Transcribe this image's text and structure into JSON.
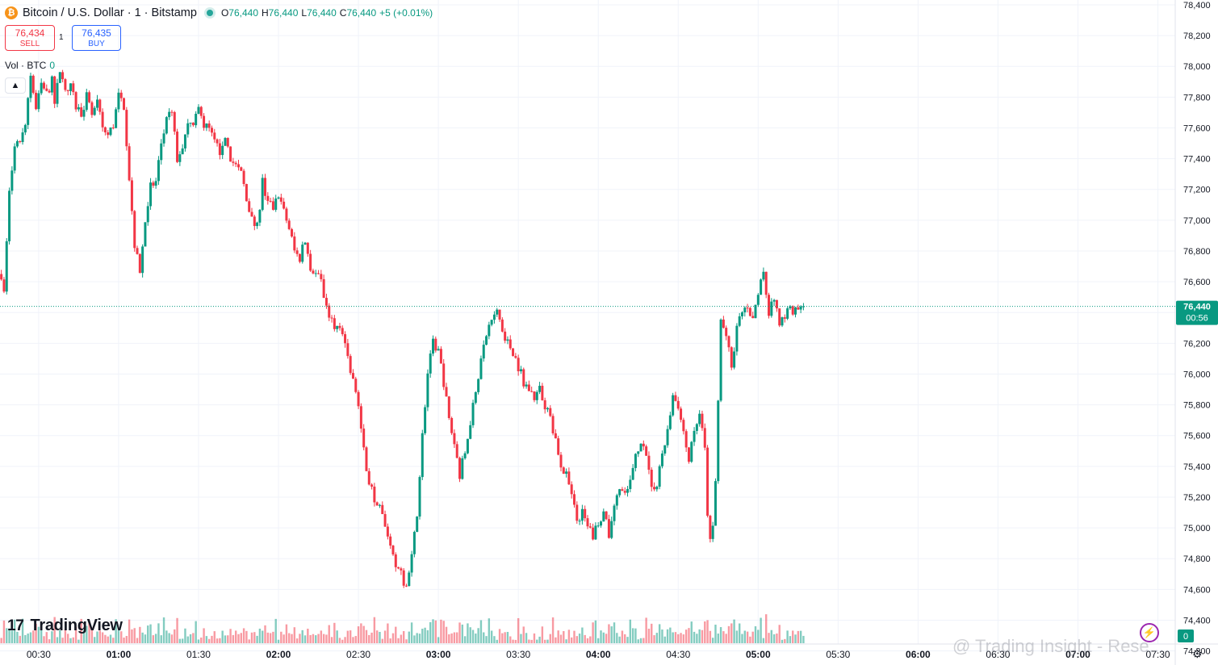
{
  "header": {
    "coin_glyph": "₿",
    "symbol": "Bitcoin / U.S. Dollar · 1 · Bitstamp",
    "open_label": "O",
    "open": "76,440",
    "high_label": "H",
    "high": "76,440",
    "low_label": "L",
    "low": "76,440",
    "close_label": "C",
    "close": "76,440",
    "change": "+5 (+0.01%)"
  },
  "trade": {
    "sell_price": "76,434",
    "sell_label": "SELL",
    "qty": "1",
    "buy_price": "76,435",
    "buy_label": "BUY"
  },
  "volume_legend": {
    "label": "Vol · BTC",
    "value": "0"
  },
  "brand": "TradingView",
  "watermark": "@ Trading Insight - Rese...",
  "price_label": {
    "price": "76,440",
    "countdown": "00:56"
  },
  "volume_label": "0",
  "colors": {
    "up": "#089981",
    "down": "#f23645",
    "accent": "#2962ff"
  },
  "chart_data": {
    "type": "candlestick",
    "title": "Bitcoin / U.S. Dollar · 1 · Bitstamp",
    "interval": "1 minute",
    "ylim": [
      74300,
      78400
    ],
    "y_ticks": [
      "78,400",
      "78,200",
      "78,000",
      "77,800",
      "77,600",
      "77,400",
      "77,200",
      "77,000",
      "76,800",
      "76,600",
      "76,400",
      "76,200",
      "76,000",
      "75,800",
      "75,600",
      "75,400",
      "75,200",
      "75,000",
      "74,800",
      "74,600",
      "74,400",
      "74,200"
    ],
    "x_ticks": [
      "00:30",
      "01:00",
      "01:30",
      "02:00",
      "02:30",
      "03:00",
      "03:30",
      "04:00",
      "04:30",
      "05:00",
      "05:30",
      "06:00",
      "06:30",
      "07:00",
      "07:30"
    ],
    "x_tick_times_min": [
      30,
      60,
      90,
      120,
      150,
      180,
      210,
      240,
      270,
      300,
      330,
      360,
      390,
      420,
      450
    ],
    "x_range_min": [
      15.5,
      456.5
    ],
    "current_price": 76440,
    "close_path": [
      {
        "t": 16,
        "p": 76650
      },
      {
        "t": 17,
        "p": 76520
      },
      {
        "t": 19,
        "p": 77200
      },
      {
        "t": 21,
        "p": 77450
      },
      {
        "t": 23,
        "p": 77520
      },
      {
        "t": 25,
        "p": 77650
      },
      {
        "t": 27,
        "p": 77950
      },
      {
        "t": 29,
        "p": 77720
      },
      {
        "t": 31,
        "p": 77880
      },
      {
        "t": 33,
        "p": 77820
      },
      {
        "t": 35,
        "p": 77900
      },
      {
        "t": 36,
        "p": 77750
      },
      {
        "t": 38,
        "p": 77980
      },
      {
        "t": 40,
        "p": 77820
      },
      {
        "t": 42,
        "p": 77860
      },
      {
        "t": 44,
        "p": 77740
      },
      {
        "t": 46,
        "p": 77700
      },
      {
        "t": 48,
        "p": 77800
      },
      {
        "t": 50,
        "p": 77680
      },
      {
        "t": 52,
        "p": 77750
      },
      {
        "t": 54,
        "p": 77600
      },
      {
        "t": 56,
        "p": 77550
      },
      {
        "t": 58,
        "p": 77620
      },
      {
        "t": 60,
        "p": 77800
      },
      {
        "t": 62,
        "p": 77750
      },
      {
        "t": 64,
        "p": 77280
      },
      {
        "t": 66,
        "p": 76850
      },
      {
        "t": 68,
        "p": 76650
      },
      {
        "t": 70,
        "p": 77000
      },
      {
        "t": 72,
        "p": 77220
      },
      {
        "t": 74,
        "p": 77250
      },
      {
        "t": 76,
        "p": 77500
      },
      {
        "t": 78,
        "p": 77650
      },
      {
        "t": 80,
        "p": 77700
      },
      {
        "t": 82,
        "p": 77400
      },
      {
        "t": 84,
        "p": 77480
      },
      {
        "t": 86,
        "p": 77650
      },
      {
        "t": 88,
        "p": 77600
      },
      {
        "t": 90,
        "p": 77720
      },
      {
        "t": 92,
        "p": 77620
      },
      {
        "t": 94,
        "p": 77580
      },
      {
        "t": 96,
        "p": 77500
      },
      {
        "t": 98,
        "p": 77450
      },
      {
        "t": 100,
        "p": 77550
      },
      {
        "t": 102,
        "p": 77400
      },
      {
        "t": 104,
        "p": 77350
      },
      {
        "t": 106,
        "p": 77300
      },
      {
        "t": 108,
        "p": 77150
      },
      {
        "t": 110,
        "p": 77000
      },
      {
        "t": 112,
        "p": 76950
      },
      {
        "t": 114,
        "p": 77250
      },
      {
        "t": 116,
        "p": 77100
      },
      {
        "t": 118,
        "p": 77080
      },
      {
        "t": 120,
        "p": 77180
      },
      {
        "t": 122,
        "p": 77050
      },
      {
        "t": 124,
        "p": 76950
      },
      {
        "t": 126,
        "p": 76800
      },
      {
        "t": 128,
        "p": 76750
      },
      {
        "t": 130,
        "p": 76880
      },
      {
        "t": 132,
        "p": 76700
      },
      {
        "t": 134,
        "p": 76650
      },
      {
        "t": 136,
        "p": 76600
      },
      {
        "t": 138,
        "p": 76420
      },
      {
        "t": 140,
        "p": 76350
      },
      {
        "t": 142,
        "p": 76300
      },
      {
        "t": 144,
        "p": 76250
      },
      {
        "t": 146,
        "p": 76100
      },
      {
        "t": 148,
        "p": 75950
      },
      {
        "t": 150,
        "p": 75800
      },
      {
        "t": 152,
        "p": 75500
      },
      {
        "t": 154,
        "p": 75300
      },
      {
        "t": 156,
        "p": 75200
      },
      {
        "t": 158,
        "p": 75150
      },
      {
        "t": 160,
        "p": 75000
      },
      {
        "t": 162,
        "p": 74850
      },
      {
        "t": 164,
        "p": 74750
      },
      {
        "t": 166,
        "p": 74700
      },
      {
        "t": 168,
        "p": 74600
      },
      {
        "t": 170,
        "p": 74800
      },
      {
        "t": 172,
        "p": 75100
      },
      {
        "t": 174,
        "p": 75600
      },
      {
        "t": 176,
        "p": 76000
      },
      {
        "t": 178,
        "p": 76200
      },
      {
        "t": 180,
        "p": 76150
      },
      {
        "t": 182,
        "p": 75950
      },
      {
        "t": 184,
        "p": 75700
      },
      {
        "t": 186,
        "p": 75550
      },
      {
        "t": 188,
        "p": 75350
      },
      {
        "t": 190,
        "p": 75500
      },
      {
        "t": 192,
        "p": 75700
      },
      {
        "t": 194,
        "p": 75900
      },
      {
        "t": 196,
        "p": 76100
      },
      {
        "t": 198,
        "p": 76250
      },
      {
        "t": 200,
        "p": 76350
      },
      {
        "t": 202,
        "p": 76400
      },
      {
        "t": 204,
        "p": 76300
      },
      {
        "t": 206,
        "p": 76200
      },
      {
        "t": 208,
        "p": 76150
      },
      {
        "t": 210,
        "p": 76050
      },
      {
        "t": 212,
        "p": 75950
      },
      {
        "t": 214,
        "p": 75900
      },
      {
        "t": 216,
        "p": 75850
      },
      {
        "t": 218,
        "p": 75900
      },
      {
        "t": 220,
        "p": 75800
      },
      {
        "t": 222,
        "p": 75700
      },
      {
        "t": 224,
        "p": 75550
      },
      {
        "t": 226,
        "p": 75400
      },
      {
        "t": 228,
        "p": 75350
      },
      {
        "t": 230,
        "p": 75200
      },
      {
        "t": 232,
        "p": 75050
      },
      {
        "t": 234,
        "p": 75100
      },
      {
        "t": 236,
        "p": 75000
      },
      {
        "t": 238,
        "p": 74950
      },
      {
        "t": 240,
        "p": 75050
      },
      {
        "t": 242,
        "p": 75100
      },
      {
        "t": 244,
        "p": 74950
      },
      {
        "t": 246,
        "p": 75150
      },
      {
        "t": 248,
        "p": 75250
      },
      {
        "t": 250,
        "p": 75200
      },
      {
        "t": 252,
        "p": 75300
      },
      {
        "t": 254,
        "p": 75450
      },
      {
        "t": 256,
        "p": 75550
      },
      {
        "t": 258,
        "p": 75500
      },
      {
        "t": 260,
        "p": 75250
      },
      {
        "t": 262,
        "p": 75300
      },
      {
        "t": 264,
        "p": 75450
      },
      {
        "t": 266,
        "p": 75650
      },
      {
        "t": 268,
        "p": 75850
      },
      {
        "t": 270,
        "p": 75800
      },
      {
        "t": 272,
        "p": 75600
      },
      {
        "t": 274,
        "p": 75450
      },
      {
        "t": 276,
        "p": 75600
      },
      {
        "t": 278,
        "p": 75750
      },
      {
        "t": 280,
        "p": 75500
      },
      {
        "t": 281,
        "p": 75100
      },
      {
        "t": 282,
        "p": 74900
      },
      {
        "t": 283,
        "p": 75000
      },
      {
        "t": 284,
        "p": 75300
      },
      {
        "t": 286,
        "p": 76350
      },
      {
        "t": 288,
        "p": 76250
      },
      {
        "t": 290,
        "p": 76050
      },
      {
        "t": 292,
        "p": 76300
      },
      {
        "t": 294,
        "p": 76400
      },
      {
        "t": 296,
        "p": 76450
      },
      {
        "t": 298,
        "p": 76350
      },
      {
        "t": 300,
        "p": 76550
      },
      {
        "t": 302,
        "p": 76650
      },
      {
        "t": 304,
        "p": 76400
      },
      {
        "t": 306,
        "p": 76500
      },
      {
        "t": 308,
        "p": 76300
      },
      {
        "t": 310,
        "p": 76380
      },
      {
        "t": 312,
        "p": 76420
      },
      {
        "t": 314,
        "p": 76400
      },
      {
        "t": 316,
        "p": 76420
      },
      {
        "t": 317,
        "p": 76440
      }
    ]
  }
}
